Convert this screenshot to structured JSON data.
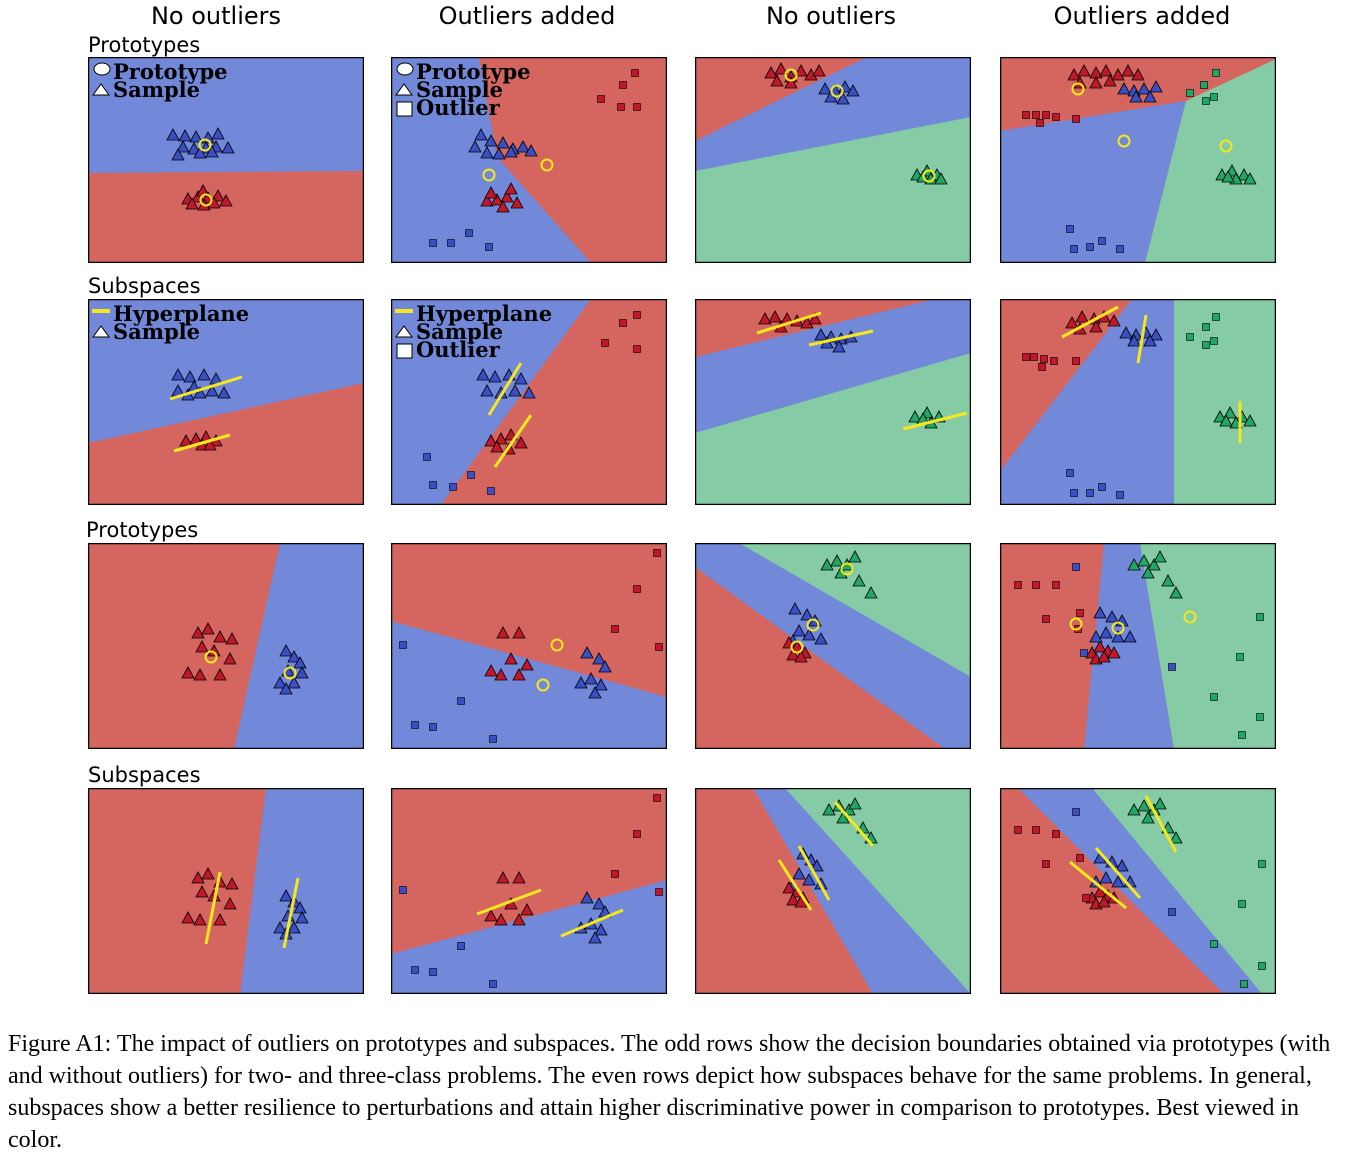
{
  "columns": [
    "No outliers",
    "Outliers added",
    "No outliers",
    "Outliers added"
  ],
  "row_labels": {
    "row1": "Prototypes",
    "row2": "Subspaces",
    "row3": "Prototypes",
    "row4": "Subspaces"
  },
  "legends": {
    "prototype": "Prototype",
    "sample": "Sample",
    "outlier": "Outlier",
    "hyperplane": "Hyperplane"
  },
  "colors": {
    "red_region": "#d4665f",
    "blue_region": "#7189d8",
    "green_region": "#85cca6",
    "red_marker": "#c0182a",
    "blue_marker": "#3b4fc4",
    "green_marker": "#1fa763",
    "highlight": "#f5e71e"
  },
  "caption": "Figure A1: The impact of outliers on prototypes and subspaces. The odd rows show the decision boundaries obtained via prototypes (with and without outliers) for two- and three-class problems. The even rows depict how subspaces behave for the same problems. In general, subspaces show a better resilience to perturbations and attain higher discriminative power in comparison to prototypes. Best viewed in color."
}
